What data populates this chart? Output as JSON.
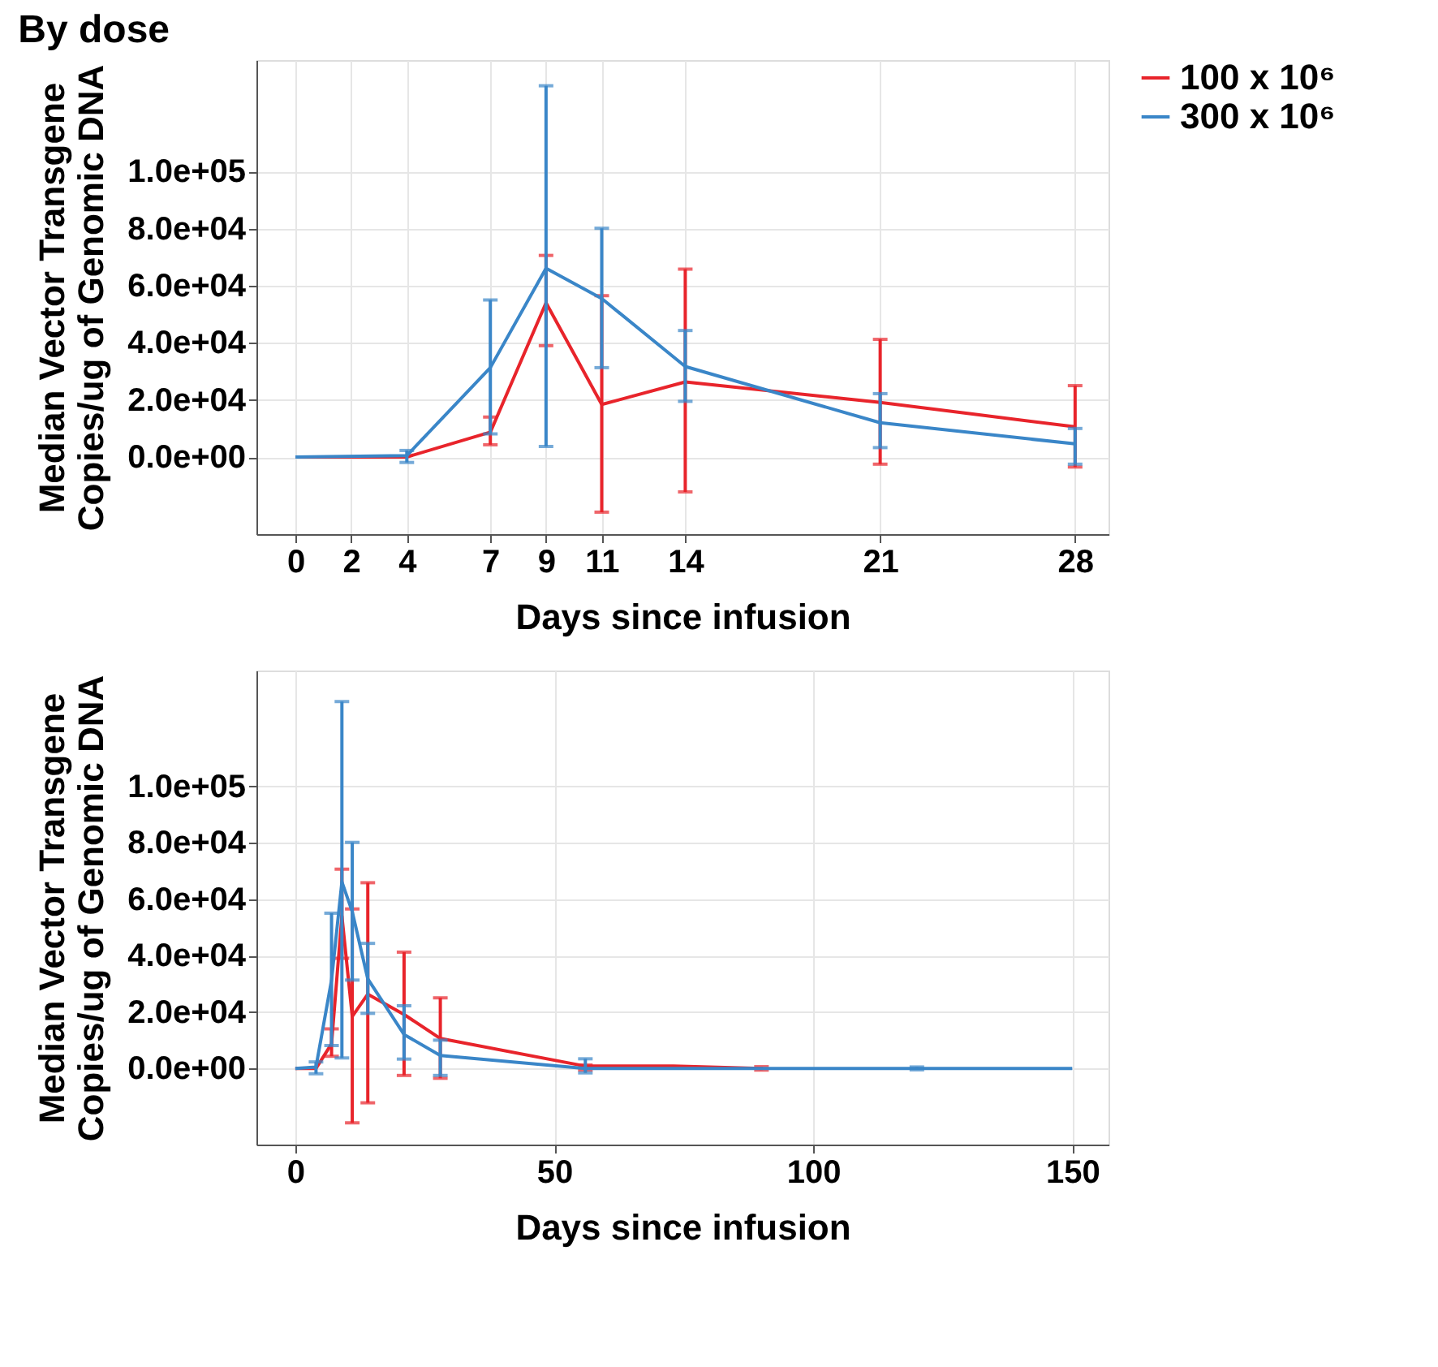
{
  "chart_data": [
    {
      "type": "line",
      "title": "By dose",
      "xlabel": "Days since infusion",
      "ylabel": "Median Vector Transgene\nCopies/ug of Genomic DNA",
      "xlim": [
        -1.4,
        29.2
      ],
      "xticks": [
        0,
        2,
        4,
        7,
        9,
        11,
        14,
        21,
        28
      ],
      "ylim": [
        -27000,
        139000
      ],
      "yticks": [
        {
          "value": 0,
          "label": "0.0e+00"
        },
        {
          "value": 20000,
          "label": "2.0e+04"
        },
        {
          "value": 40000,
          "label": "4.0e+04"
        },
        {
          "value": 60000,
          "label": "6.0e+04"
        },
        {
          "value": 80000,
          "label": "8.0e+04"
        },
        {
          "value": 100000,
          "label": "1.0e+05"
        }
      ],
      "grid": true,
      "legend": "right",
      "marker": "none",
      "line_style": "solid",
      "series": [
        {
          "name": "100 x 10⁶",
          "color": "#e8242b",
          "x": [
            0,
            4,
            7,
            9,
            11,
            14,
            21,
            28
          ],
          "values": [
            0,
            0,
            8700,
            54000,
            18400,
            26300,
            19100,
            10600
          ],
          "errors": [
            null,
            null,
            [
              4300,
              14000
            ],
            [
              39000,
              70600
            ],
            [
              -19300,
              56500
            ],
            [
              -12200,
              65800
            ],
            [
              -2500,
              41200
            ],
            [
              -3500,
              25000
            ]
          ]
        },
        {
          "name": "300 x 10⁶",
          "color": "#3a86c8",
          "x": [
            0,
            4,
            7,
            9,
            11,
            14,
            21,
            28
          ],
          "values": [
            0,
            500,
            31300,
            66100,
            55500,
            31700,
            12000,
            4600
          ],
          "errors": [
            null,
            [
              -1900,
              2300
            ],
            [
              8100,
              55000
            ],
            [
              3700,
              130000
            ],
            [
              31300,
              80100
            ],
            [
              19500,
              44300
            ],
            [
              3300,
              22200
            ],
            [
              -2500,
              10000
            ]
          ]
        }
      ]
    },
    {
      "type": "line",
      "xlabel": "Days since infusion",
      "ylabel": "Median Vector Transgene\nCopies/ug of Genomic DNA",
      "xlim": [
        -7.5,
        157
      ],
      "xticks": [
        0,
        50,
        100,
        150
      ],
      "ylim": [
        -27000,
        141000
      ],
      "yticks": [
        {
          "value": 0,
          "label": "0.0e+00"
        },
        {
          "value": 20000,
          "label": "2.0e+04"
        },
        {
          "value": 40000,
          "label": "4.0e+04"
        },
        {
          "value": 60000,
          "label": "6.0e+04"
        },
        {
          "value": 80000,
          "label": "8.0e+04"
        },
        {
          "value": 100000,
          "label": "1.0e+05"
        }
      ],
      "grid": true,
      "marker": "none",
      "line_style": "solid",
      "series": [
        {
          "color": "#e8242b",
          "x": [
            0,
            4,
            7,
            9,
            11,
            14,
            21,
            28,
            56,
            73,
            90
          ],
          "values": [
            0,
            0,
            8700,
            54000,
            18400,
            26300,
            19100,
            10600,
            800,
            800,
            0
          ],
          "errors": [
            null,
            null,
            [
              4300,
              14000
            ],
            [
              39000,
              70600
            ],
            [
              -19300,
              56500
            ],
            [
              -12200,
              65800
            ],
            [
              -2500,
              41200
            ],
            [
              -3500,
              25000
            ],
            [
              -600,
              1200
            ],
            null,
            [
              -600,
              600
            ]
          ]
        },
        {
          "color": "#3a86c8",
          "x": [
            0,
            4,
            7,
            9,
            11,
            14,
            21,
            28,
            56,
            120,
            150
          ],
          "values": [
            0,
            500,
            31300,
            66100,
            55500,
            31700,
            12000,
            4600,
            0,
            0,
            0
          ],
          "errors": [
            null,
            [
              -1900,
              2300
            ],
            [
              8100,
              55000
            ],
            [
              3700,
              130000
            ],
            [
              31300,
              80100
            ],
            [
              19500,
              44300
            ],
            [
              3300,
              22200
            ],
            [
              -2500,
              10000
            ],
            [
              -1600,
              3400
            ],
            [
              -500,
              500
            ],
            null
          ]
        }
      ]
    }
  ]
}
